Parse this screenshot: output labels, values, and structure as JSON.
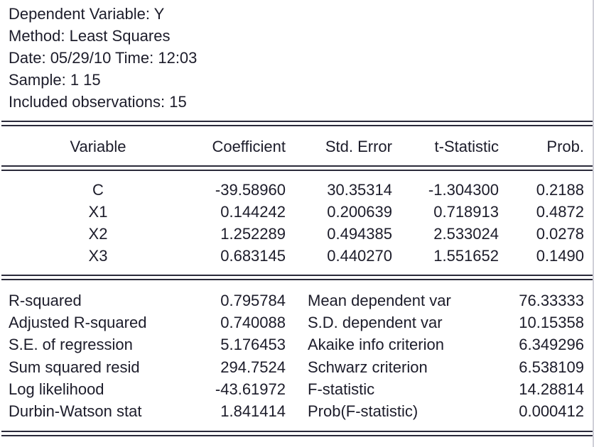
{
  "header": {
    "dependent": "Dependent Variable: Y",
    "method": "Method: Least Squares",
    "date": "Date: 05/29/10   Time: 12:03",
    "sample": "Sample: 1 15",
    "observations": "Included observations: 15"
  },
  "columns": [
    "Variable",
    "Coefficient",
    "Std. Error",
    "t-Statistic",
    "Prob."
  ],
  "rows": [
    [
      "C",
      "-39.58960",
      "30.35314",
      "-1.304300",
      "0.2188"
    ],
    [
      "X1",
      "0.144242",
      "0.200639",
      "0.718913",
      "0.4872"
    ],
    [
      "X2",
      "1.252289",
      "0.494385",
      "2.533024",
      "0.0278"
    ],
    [
      "X3",
      "0.683145",
      "0.440270",
      "1.551652",
      "0.1490"
    ]
  ],
  "stats": [
    [
      "R-squared",
      "0.795784",
      "Mean dependent var",
      "76.33333"
    ],
    [
      "Adjusted R-squared",
      "0.740088",
      "S.D. dependent var",
      "10.15358"
    ],
    [
      "S.E. of regression",
      "5.176453",
      "Akaike info criterion",
      "6.349296"
    ],
    [
      "Sum squared resid",
      "294.7524",
      "Schwarz criterion",
      "6.538109"
    ],
    [
      "Log likelihood",
      "-43.61972",
      "F-statistic",
      "14.28814"
    ],
    [
      "Durbin-Watson stat",
      "1.841414",
      "Prob(F-statistic)",
      "0.000412"
    ]
  ]
}
